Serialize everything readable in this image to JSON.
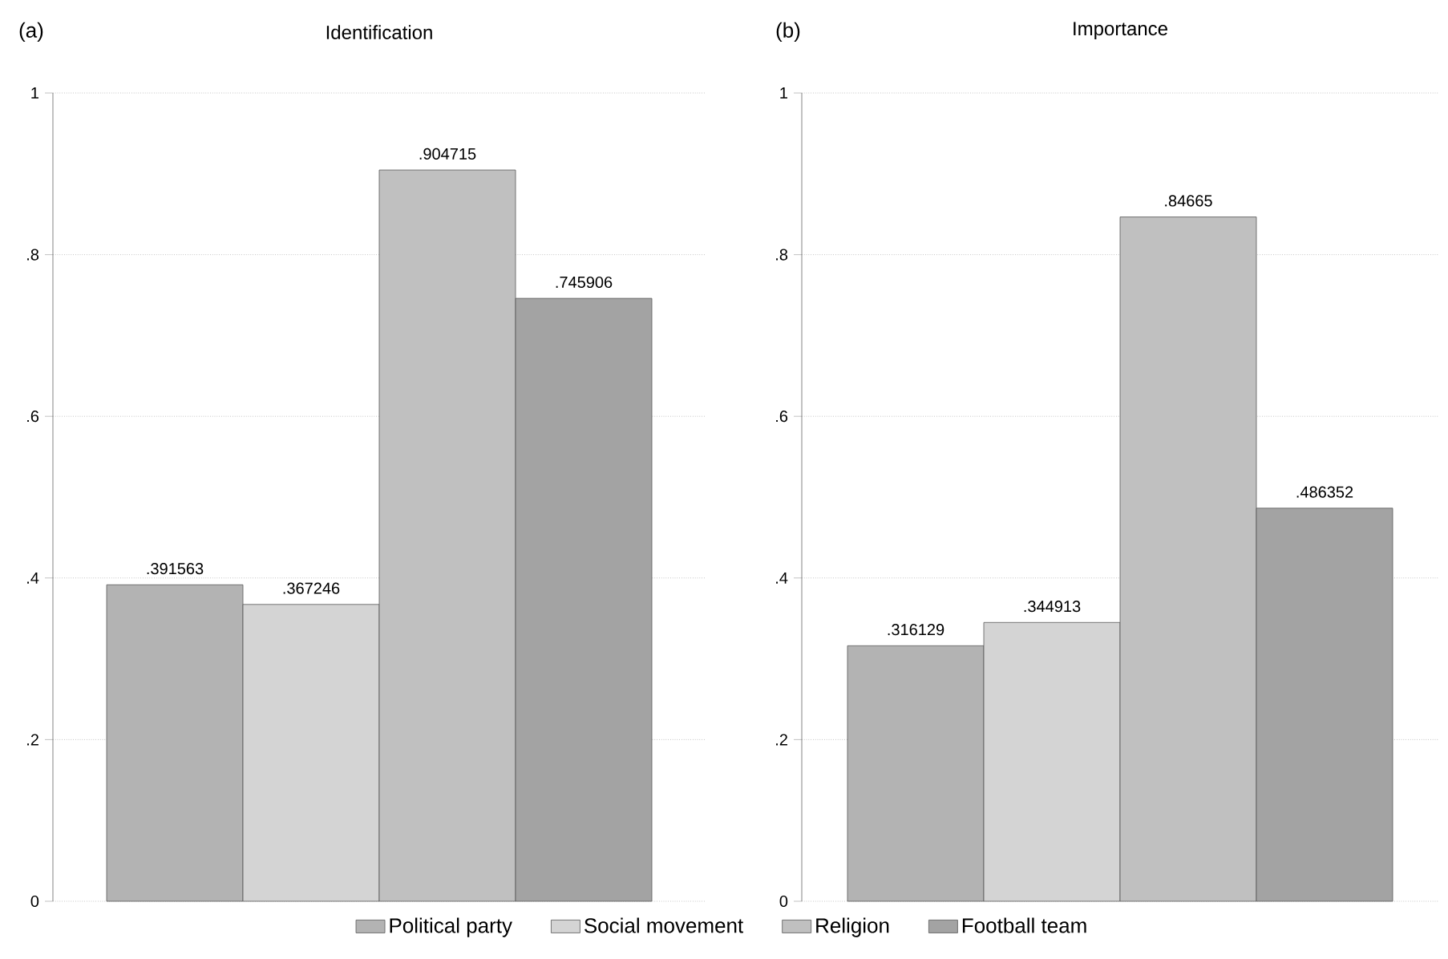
{
  "chart_data": [
    {
      "type": "bar",
      "title": "Identification",
      "annotations": [
        "(a)"
      ],
      "categories": [
        null
      ],
      "ylim": [
        0,
        1
      ],
      "yticks": [
        0,
        {
          "value": 0.2,
          "label": ".2"
        },
        {
          "value": 0.4,
          "label": ".4"
        },
        {
          "value": 0.6,
          "label": ".6"
        },
        {
          "value": 0.8,
          "label": ".8"
        },
        1
      ],
      "grid": "y",
      "legend": "bottom",
      "series": [
        {
          "name": "Political party",
          "color": "#b3b3b3",
          "values": [
            0.391563
          ],
          "value_labels": [
            ".391563"
          ]
        },
        {
          "name": "Social movement",
          "color": "#d4d4d4",
          "values": [
            0.367246
          ],
          "value_labels": [
            ".367246"
          ]
        },
        {
          "name": "Religion",
          "color": "#c0c0c0",
          "values": [
            0.904715
          ],
          "value_labels": [
            ".904715"
          ]
        },
        {
          "name": "Football team",
          "color": "#a3a3a3",
          "values": [
            0.745906
          ],
          "value_labels": [
            ".745906"
          ]
        }
      ]
    },
    {
      "type": "bar",
      "title": "Importance",
      "annotations": [
        "(b)"
      ],
      "categories": [
        null
      ],
      "ylim": [
        0,
        1
      ],
      "yticks": [
        0,
        {
          "value": 0.2,
          "label": ".2"
        },
        {
          "value": 0.4,
          "label": ".4"
        },
        {
          "value": 0.6,
          "label": ".6"
        },
        {
          "value": 0.8,
          "label": ".8"
        },
        1
      ],
      "grid": "y",
      "series": [
        {
          "color": "#b3b3b3",
          "values": [
            0.316129
          ],
          "value_labels": [
            ".316129"
          ]
        },
        {
          "color": "#d4d4d4",
          "values": [
            0.344913
          ],
          "value_labels": [
            ".344913"
          ]
        },
        {
          "color": "#c0c0c0",
          "values": [
            0.84665
          ],
          "value_labels": [
            ".84665"
          ]
        },
        {
          "color": "#a3a3a3",
          "values": [
            0.486352
          ],
          "value_labels": [
            ".486352"
          ]
        }
      ]
    }
  ]
}
